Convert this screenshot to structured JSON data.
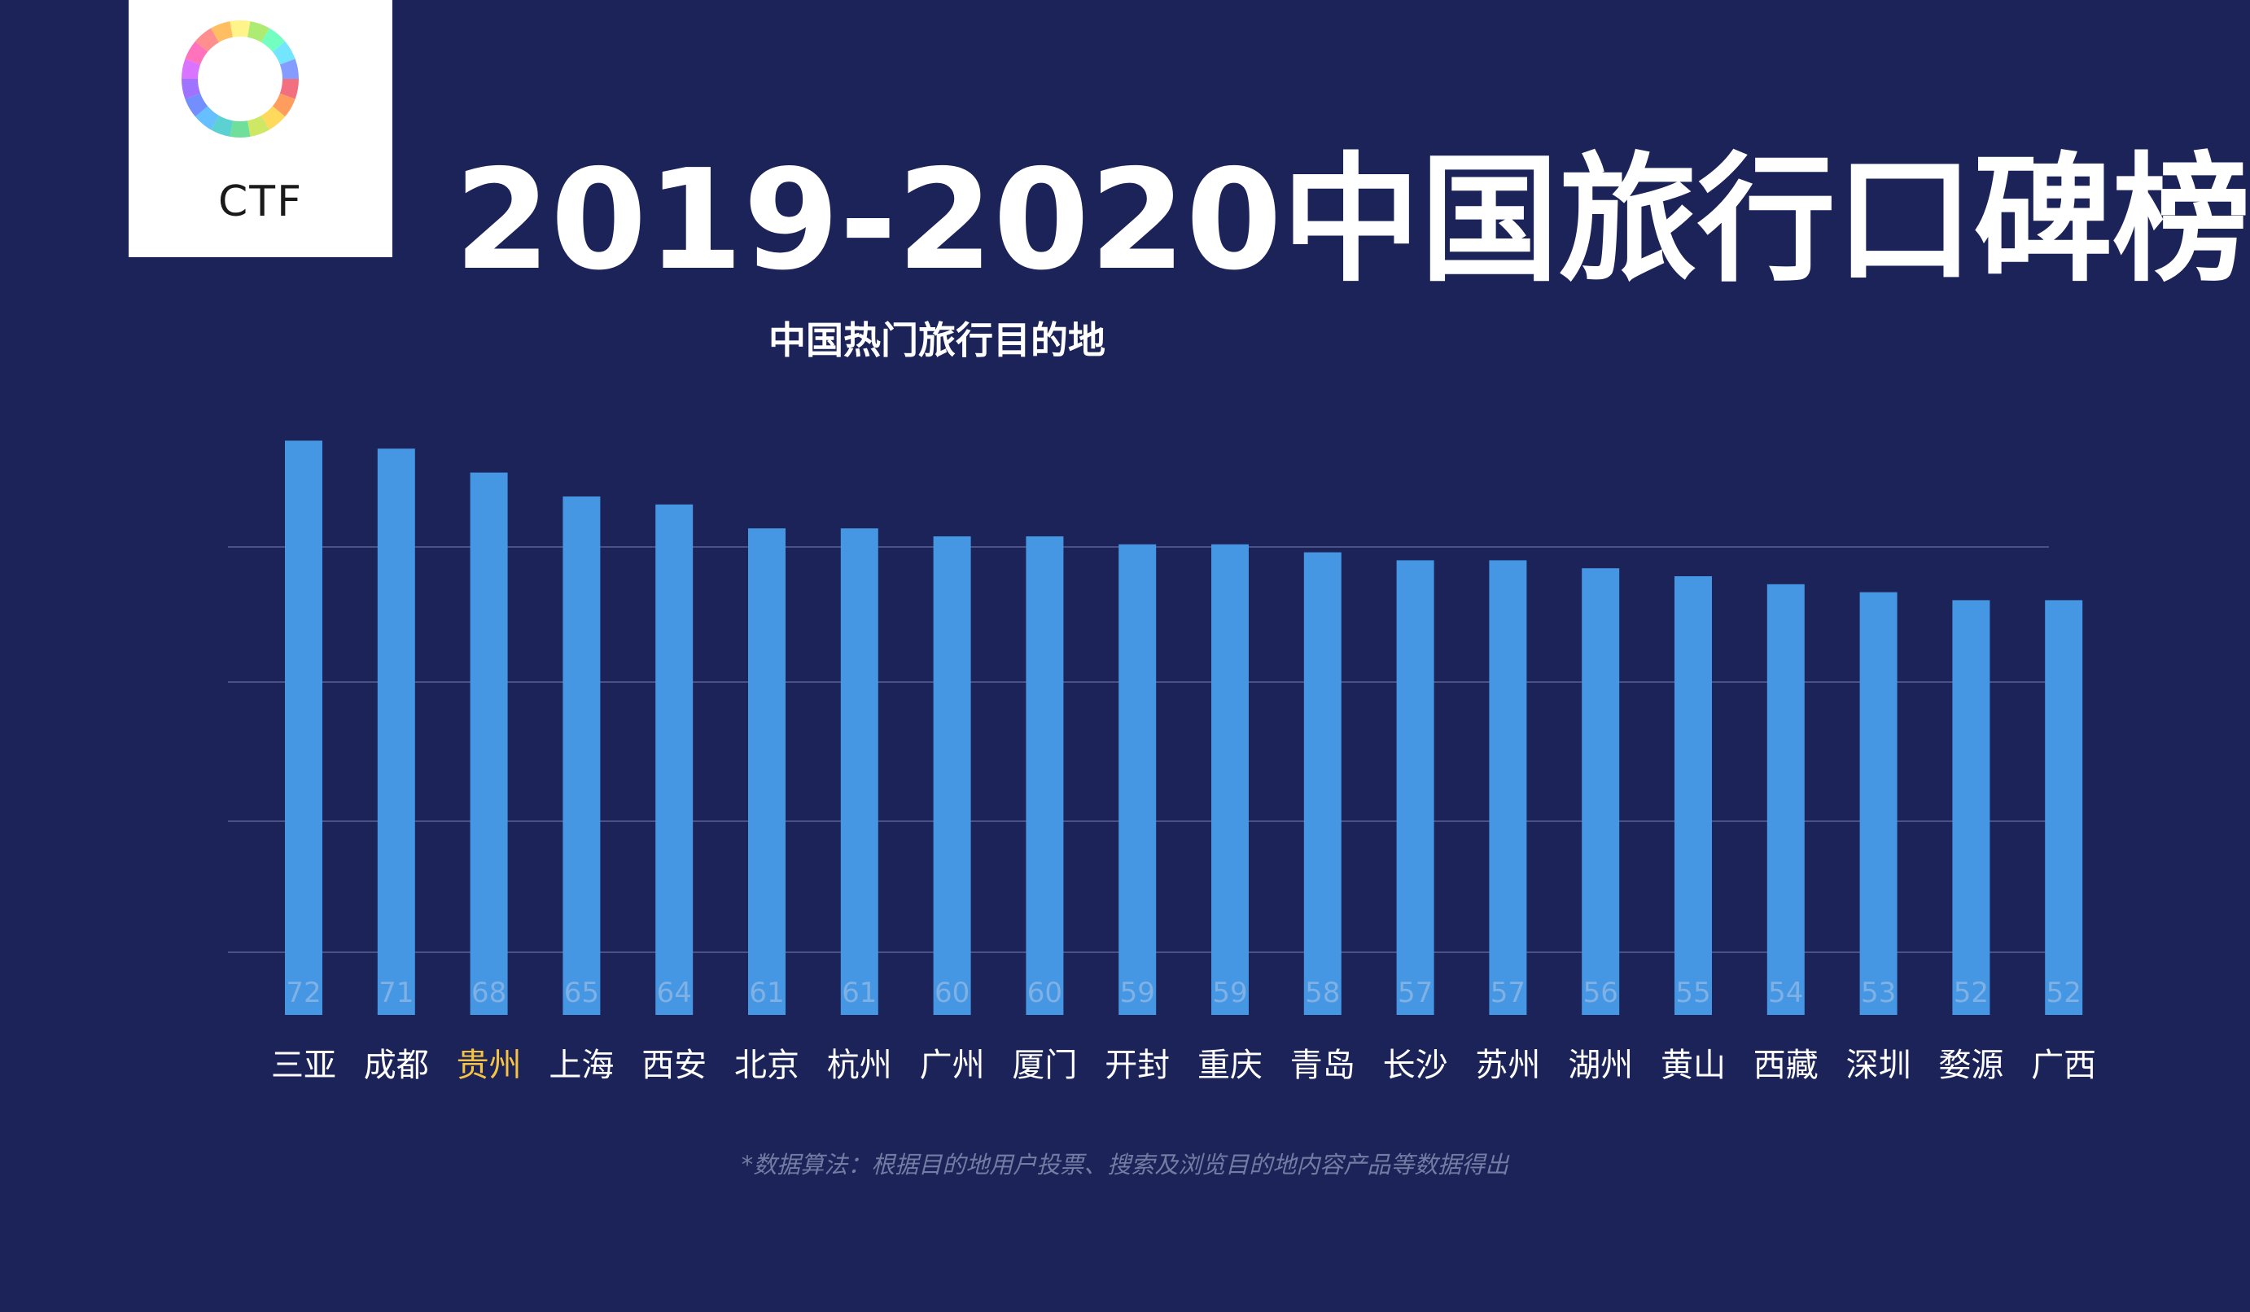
{
  "logo": {
    "text": "CTF"
  },
  "title": "2019-2020中国旅行口碑榜",
  "subtitle": "中国热门旅行目的地",
  "footnote": "*数据算法：根据目的地用户投票、搜索及浏览目的地内容产品等数据得出",
  "colors": {
    "background": "#1b2358",
    "bar": "#4596e3",
    "highlight_label": "#f6c343",
    "value_label": "#7fb1e5",
    "gridline": "#4a5285"
  },
  "chart_data": {
    "type": "bar",
    "categories": [
      "三亚",
      "成都",
      "贵州",
      "上海",
      "西安",
      "北京",
      "杭州",
      "广州",
      "厦门",
      "开封",
      "重庆",
      "青岛",
      "长沙",
      "苏州",
      "湖州",
      "黄山",
      "西藏",
      "深圳",
      "婺源",
      "广西"
    ],
    "values": [
      72,
      71,
      68,
      65,
      64,
      61,
      61,
      60,
      60,
      59,
      59,
      58,
      57,
      57,
      56,
      55,
      54,
      53,
      52,
      52
    ],
    "highlighted_category": "贵州",
    "grid": true,
    "legend": "none"
  }
}
